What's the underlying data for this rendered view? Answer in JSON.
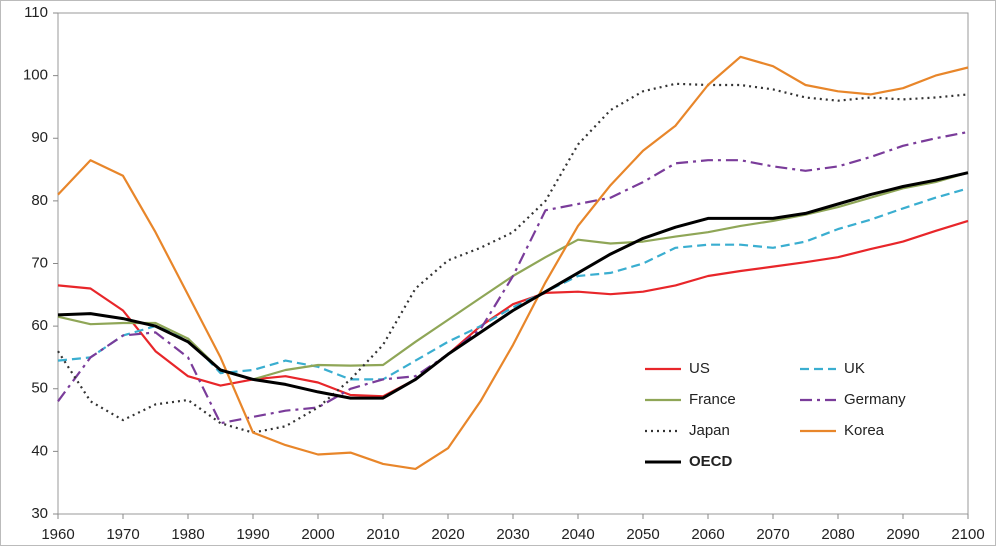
{
  "chart_data": {
    "type": "line",
    "x": [
      1960,
      1965,
      1970,
      1975,
      1980,
      1985,
      1990,
      1995,
      2000,
      2005,
      2010,
      2015,
      2020,
      2025,
      2030,
      2035,
      2040,
      2045,
      2050,
      2055,
      2060,
      2065,
      2070,
      2075,
      2080,
      2085,
      2090,
      2095,
      2100
    ],
    "series": [
      {
        "name": "US",
        "color": "#e8262a",
        "line_style": "solid",
        "line_width": 2.2,
        "values": [
          66.5,
          66,
          62.5,
          56,
          52,
          50.5,
          51.5,
          52,
          51,
          49,
          48.8,
          51.5,
          55.5,
          60,
          63.5,
          65.3,
          65.5,
          65.1,
          65.5,
          66.5,
          68,
          68.8,
          69.5,
          70.2,
          71,
          72.3,
          73.5,
          75.2,
          76.8
        ]
      },
      {
        "name": "UK",
        "color": "#3aaed0",
        "line_style": "dashed",
        "line_width": 2.2,
        "values": [
          54.5,
          55,
          58.5,
          60,
          58,
          52.5,
          53,
          54.5,
          53.5,
          51.5,
          51.5,
          54.5,
          57.5,
          60,
          63,
          65.5,
          68,
          68.5,
          70,
          72.5,
          73,
          73,
          72.5,
          73.5,
          75.5,
          77,
          78.8,
          80.5,
          82
        ]
      },
      {
        "name": "France",
        "color": "#8fa657",
        "line_style": "solid",
        "line_width": 2.2,
        "values": [
          61.5,
          60.3,
          60.5,
          60.5,
          58,
          53,
          51.5,
          53,
          53.8,
          53.7,
          53.8,
          57.5,
          61,
          64.5,
          68,
          71,
          73.8,
          73.2,
          73.5,
          74.3,
          75,
          76,
          76.8,
          77.8,
          79,
          80.5,
          82,
          83,
          84.5
        ]
      },
      {
        "name": "Germany",
        "color": "#7a3c9a",
        "line_style": "dashdot",
        "line_width": 2.2,
        "values": [
          48,
          55,
          58.5,
          59,
          55,
          44.5,
          45.5,
          46.5,
          47,
          50,
          51.5,
          52,
          55.5,
          59.5,
          68,
          78.5,
          79.5,
          80.5,
          83,
          86,
          86.5,
          86.5,
          85.5,
          84.8,
          85.5,
          87,
          88.8,
          90,
          91
        ]
      },
      {
        "name": "Japan",
        "color": "#333333",
        "line_style": "dotted",
        "line_width": 2.2,
        "values": [
          56,
          48,
          45,
          47.5,
          48.2,
          44.5,
          43,
          44,
          47,
          51.5,
          57,
          66,
          70.5,
          72.5,
          75,
          80,
          89,
          94.5,
          97.5,
          98.7,
          98.5,
          98.5,
          97.8,
          96.5,
          96,
          96.5,
          96.2,
          96.5,
          97
        ]
      },
      {
        "name": "Korea",
        "color": "#e8862a",
        "line_style": "solid",
        "line_width": 2.2,
        "values": [
          81,
          86.5,
          84,
          75,
          65,
          55,
          43,
          41,
          39.5,
          39.8,
          38,
          37.2,
          40.5,
          48,
          57,
          67,
          76,
          82.5,
          88,
          92,
          98.5,
          103,
          101.5,
          98.5,
          97.5,
          97,
          98,
          100,
          101.3
        ]
      },
      {
        "name": "OECD",
        "color": "#000000",
        "line_style": "solid",
        "line_width": 3,
        "values": [
          61.8,
          62,
          61.2,
          60,
          57.5,
          53,
          51.5,
          50.7,
          49.5,
          48.5,
          48.5,
          51.5,
          55.5,
          59,
          62.5,
          65.5,
          68.5,
          71.5,
          74,
          75.8,
          77.2,
          77.2,
          77.2,
          78,
          79.5,
          81,
          82.3,
          83.3,
          84.5
        ]
      }
    ],
    "xlim": [
      1960,
      2100
    ],
    "xticks": [
      1960,
      1970,
      1980,
      1990,
      2000,
      2010,
      2020,
      2030,
      2040,
      2050,
      2060,
      2070,
      2080,
      2090,
      2100
    ],
    "ylim": [
      30,
      110
    ],
    "yticks": [
      30,
      40,
      50,
      60,
      70,
      80,
      90,
      100,
      110
    ],
    "grid": false
  }
}
